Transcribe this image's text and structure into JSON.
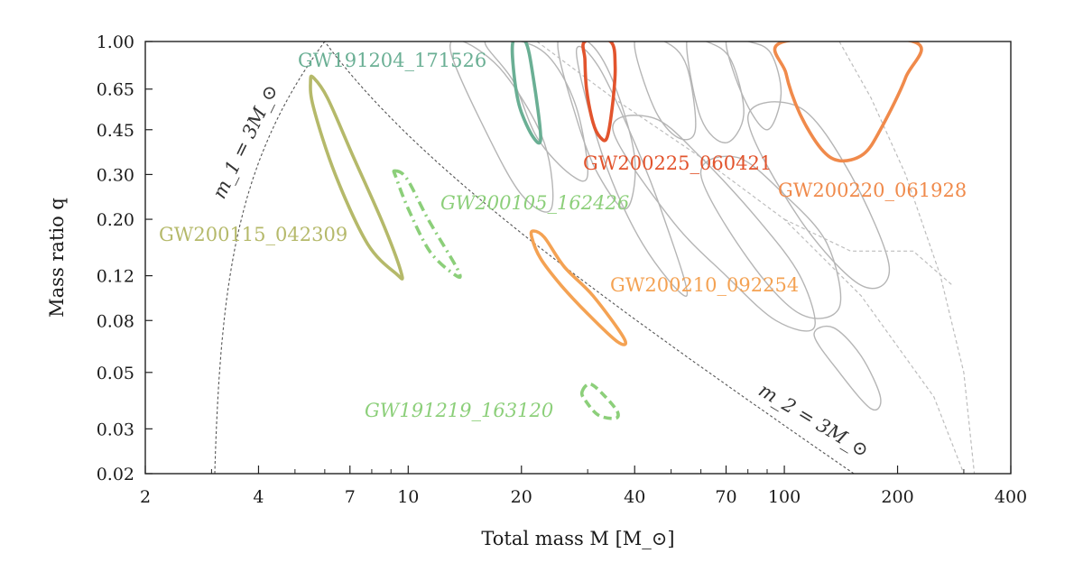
{
  "chart_data": {
    "type": "scatter",
    "title": "",
    "xlabel": "Total mass M [M_⊙]",
    "ylabel": "Mass ratio q",
    "xscale": "log",
    "yscale": "log",
    "xlim": [
      2,
      400
    ],
    "ylim": [
      0.02,
      1.0
    ],
    "grid": false,
    "x_ticks": [
      2,
      4,
      7,
      10,
      20,
      40,
      70,
      100,
      200,
      400
    ],
    "x_tick_labels": [
      "2",
      "4",
      "7",
      "10",
      "20",
      "40",
      "70",
      "100",
      "200",
      "400"
    ],
    "y_ticks": [
      0.02,
      0.03,
      0.05,
      0.08,
      0.12,
      0.2,
      0.3,
      0.45,
      0.65,
      1.0
    ],
    "y_tick_labels": [
      "0.02",
      "0.03",
      "0.05",
      "0.08",
      "0.12",
      "0.20",
      "0.30",
      "0.45",
      "0.65",
      "1.00"
    ],
    "bounds": [
      {
        "label": "m_1 = 3M_⊙",
        "relation": "M = 3(1+q)/q",
        "color": "#555555"
      },
      {
        "label": "m_2 = 3M_⊙",
        "relation": "M = 3(1+q)",
        "color": "#555555"
      }
    ],
    "events": [
      {
        "name": "GW191204_171526",
        "color": "#6aaf94",
        "style": "solid",
        "contour": [
          [
            19.0,
            1.0
          ],
          [
            20.5,
            1.0
          ],
          [
            21.5,
            0.72
          ],
          [
            22.5,
            0.42
          ],
          [
            21.5,
            0.42
          ],
          [
            19.8,
            0.55
          ],
          [
            19.1,
            0.75
          ]
        ]
      },
      {
        "name": "GW200115_042309",
        "color": "#b5b96a",
        "style": "solid",
        "contour": [
          [
            5.6,
            0.72
          ],
          [
            6.1,
            0.6
          ],
          [
            7.1,
            0.36
          ],
          [
            8.6,
            0.19
          ],
          [
            9.6,
            0.122
          ],
          [
            9.3,
            0.122
          ],
          [
            7.8,
            0.16
          ],
          [
            6.4,
            0.3
          ],
          [
            5.6,
            0.55
          ],
          [
            5.5,
            0.7
          ]
        ]
      },
      {
        "name": "GW200105_162426",
        "color": "#8ccf7a",
        "style": "dashdot",
        "italic": true,
        "contour": [
          [
            9.2,
            0.31
          ],
          [
            9.9,
            0.29
          ],
          [
            11.3,
            0.2
          ],
          [
            13.6,
            0.125
          ],
          [
            13.2,
            0.122
          ],
          [
            11.4,
            0.15
          ],
          [
            10.0,
            0.22
          ],
          [
            9.3,
            0.29
          ]
        ]
      },
      {
        "name": "GW200210_092254",
        "color": "#f4a253",
        "style": "solid",
        "contour": [
          [
            21.5,
            0.18
          ],
          [
            23.0,
            0.17
          ],
          [
            26.0,
            0.13
          ],
          [
            31.0,
            0.1
          ],
          [
            37.5,
            0.068
          ],
          [
            36.0,
            0.066
          ],
          [
            30.0,
            0.085
          ],
          [
            25.5,
            0.11
          ],
          [
            22.5,
            0.14
          ],
          [
            21.3,
            0.17
          ]
        ]
      },
      {
        "name": "GW191219_163120",
        "color": "#8ccf7a",
        "style": "dashed",
        "italic": true,
        "contour": [
          [
            29.0,
            0.042
          ],
          [
            30.5,
            0.045
          ],
          [
            33.5,
            0.04
          ],
          [
            36.0,
            0.035
          ],
          [
            35.5,
            0.033
          ],
          [
            32.0,
            0.034
          ],
          [
            29.5,
            0.039
          ]
        ]
      },
      {
        "name": "GW200225_060421",
        "color": "#e2542d",
        "style": "solid",
        "contour": [
          [
            29.5,
            1.0
          ],
          [
            34.5,
            1.0
          ],
          [
            35.5,
            0.8
          ],
          [
            35.0,
            0.58
          ],
          [
            33.8,
            0.42
          ],
          [
            32.4,
            0.42
          ],
          [
            31.0,
            0.48
          ],
          [
            29.8,
            0.65
          ],
          [
            29.5,
            0.85
          ]
        ]
      },
      {
        "name": "GW200220_061928",
        "color": "#f08a4b",
        "style": "solid",
        "contour": [
          [
            100.0,
            1.0
          ],
          [
            220.0,
            1.0
          ],
          [
            210.0,
            0.72
          ],
          [
            180.0,
            0.45
          ],
          [
            162.0,
            0.36
          ],
          [
            140.0,
            0.34
          ],
          [
            125.0,
            0.38
          ],
          [
            110.0,
            0.52
          ],
          [
            101.0,
            0.75
          ]
        ]
      }
    ]
  }
}
